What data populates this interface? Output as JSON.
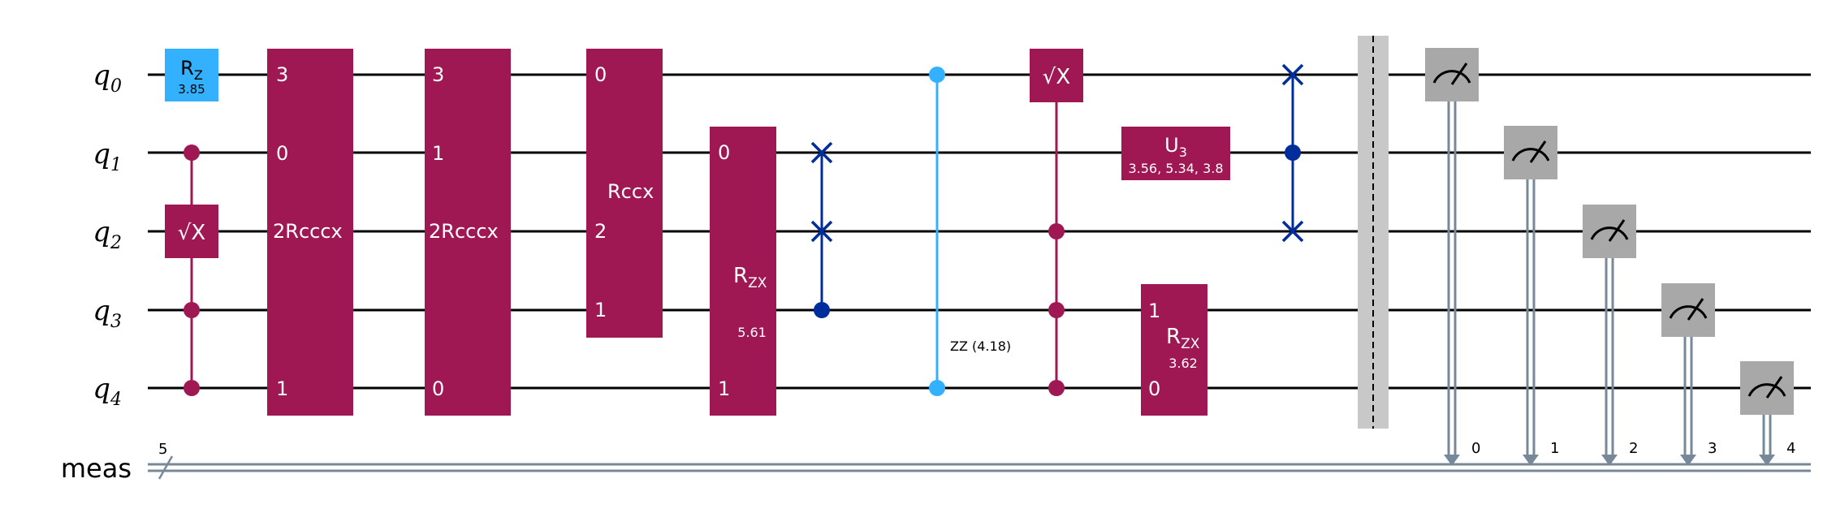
{
  "colors": {
    "wire": "#000000",
    "classical_wire": "#778899",
    "purple": "#9f1853",
    "light_blue": "#33b1ff",
    "dark_blue": "#002d9c",
    "measure_gray": "#a8a8a8",
    "barrier_gray": "#c8c8c8",
    "gate_text": "#ffffff"
  },
  "qubits": [
    {
      "base": "q",
      "sub": "0"
    },
    {
      "base": "q",
      "sub": "1"
    },
    {
      "base": "q",
      "sub": "2"
    },
    {
      "base": "q",
      "sub": "3"
    },
    {
      "base": "q",
      "sub": "4"
    }
  ],
  "classical": {
    "label": "meas",
    "size": "5"
  },
  "gates": {
    "rz": {
      "name": "R",
      "sub": "Z",
      "param": "3.85"
    },
    "csx_1": {
      "label": "√X"
    },
    "rcccx_1": {
      "name": "Rcccx",
      "ctrl": "2",
      "pins": [
        "3",
        "0",
        "1"
      ]
    },
    "rcccx_2": {
      "name": "Rcccx",
      "ctrl": "2",
      "pins": [
        "3",
        "1",
        "0"
      ]
    },
    "rccx": {
      "name": "Rccx",
      "pins": [
        "0",
        "2",
        "1"
      ]
    },
    "rzx_1": {
      "name": "R",
      "sub": "ZX",
      "param": "5.61",
      "pins": [
        "0",
        "1"
      ]
    },
    "zz": {
      "label": "ZZ (4.18)"
    },
    "csx_2": {
      "label": "√X"
    },
    "u3": {
      "name": "U",
      "sub": "3",
      "param": "3.56, 5.34, 3.8"
    },
    "rzx_2": {
      "name": "R",
      "sub": "ZX",
      "param": "3.62",
      "pins": [
        "1",
        "0"
      ]
    }
  },
  "measure_bits": [
    "0",
    "1",
    "2",
    "3",
    "4"
  ],
  "icons": [
    "measure-meter-icon",
    "swap-cross-icon",
    "control-dot-icon",
    "barrier-icon"
  ]
}
